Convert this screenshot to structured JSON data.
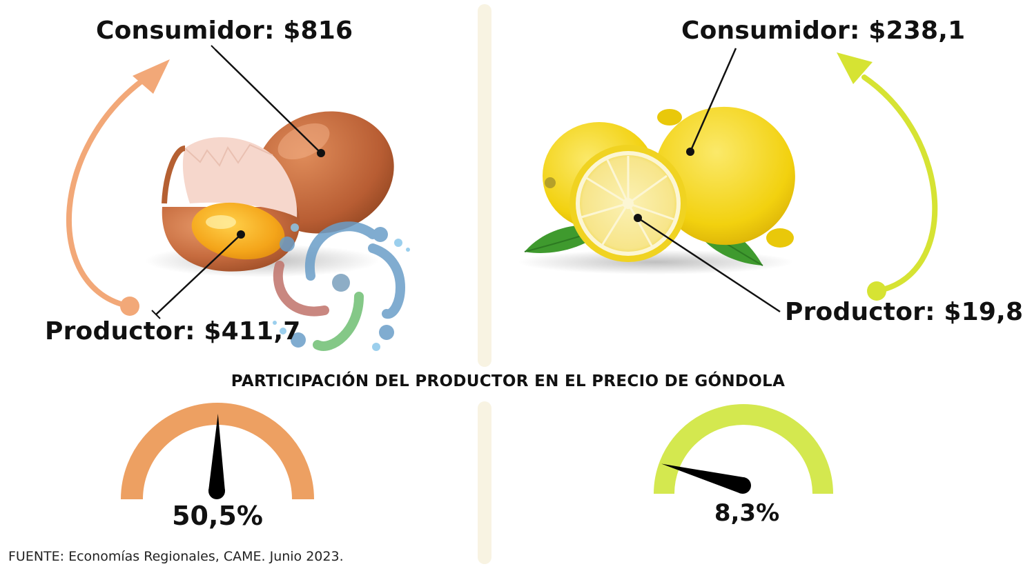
{
  "colors": {
    "egg_accent": "#f2a878",
    "egg_gauge": "#eda062",
    "lemon_accent": "#d6e333",
    "lemon_gauge": "#d4e84f",
    "divider": "#f8f3e2",
    "needle": "#000000"
  },
  "eggs": {
    "consumer_label": "Consumidor: $816",
    "producer_label": "Productor: $411,7",
    "producer_share_percent": 50.5,
    "share_label": "50,5%"
  },
  "lemons": {
    "consumer_label": "Consumidor: $238,1",
    "producer_label": "Productor: $19,8",
    "producer_share_percent": 8.3,
    "share_label": "8,3%"
  },
  "section_title": "PARTICIPACIÓN DEL PRODUCTOR EN EL PRECIO DE GÓNDOLA",
  "source": "FUENTE: Economías Regionales, CAME. Junio 2023.",
  "icons": [
    "egg-illustration",
    "lemon-illustration",
    "spiral-logo-watermark",
    "curved-arrow-icon",
    "gauge-icon"
  ]
}
